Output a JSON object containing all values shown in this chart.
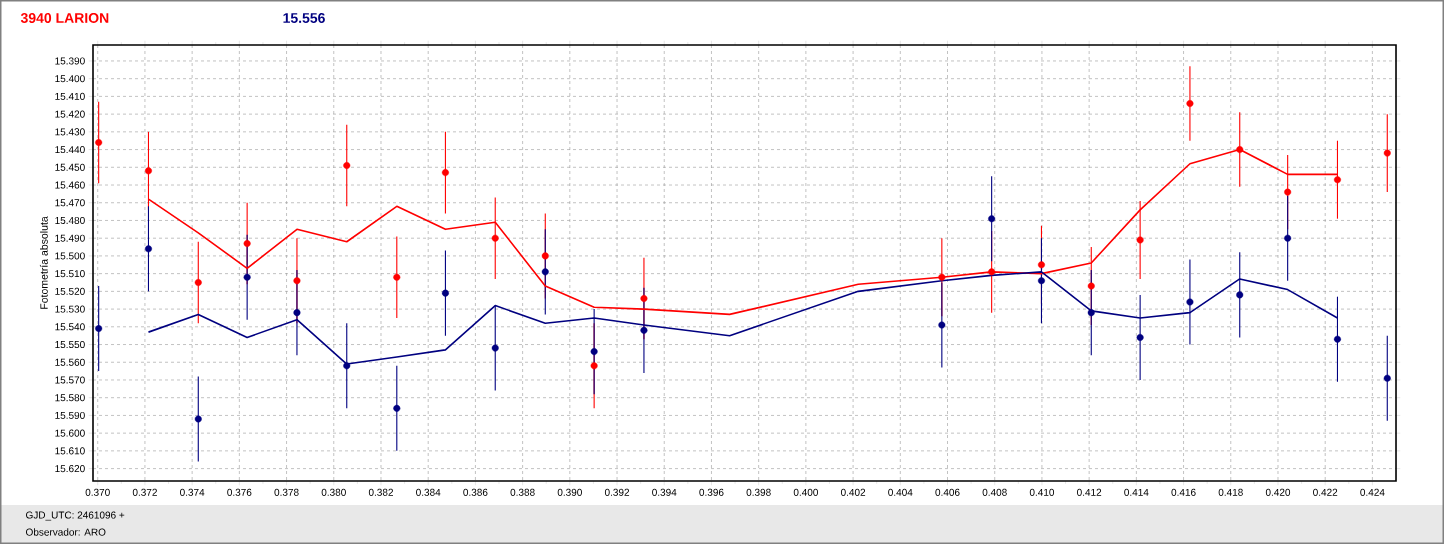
{
  "chart_data": {
    "type": "scatter",
    "title": "3940 LARION",
    "subtitle": "15.556",
    "ylabel": "Fotometría absoluta",
    "annotations": [
      "GJD_UTC: 2461096 +",
      "Observador: ARO"
    ],
    "xlim": [
      0.3698,
      0.425
    ],
    "ylim": [
      15.627,
      15.381
    ],
    "xticks": [
      {
        "value": 0.37,
        "label": "0.370"
      },
      {
        "value": 0.372,
        "label": "0.372"
      },
      {
        "value": 0.374,
        "label": "0.374"
      },
      {
        "value": 0.376,
        "label": "0.376"
      },
      {
        "value": 0.378,
        "label": "0.378"
      },
      {
        "value": 0.38,
        "label": "0.380"
      },
      {
        "value": 0.382,
        "label": "0.382"
      },
      {
        "value": 0.384,
        "label": "0.384"
      },
      {
        "value": 0.386,
        "label": "0.386"
      },
      {
        "value": 0.388,
        "label": "0.388"
      },
      {
        "value": 0.39,
        "label": "0.390"
      },
      {
        "value": 0.392,
        "label": "0.392"
      },
      {
        "value": 0.394,
        "label": "0.394"
      },
      {
        "value": 0.396,
        "label": "0.396"
      },
      {
        "value": 0.398,
        "label": "0.398"
      },
      {
        "value": 0.4,
        "label": "0.400"
      },
      {
        "value": 0.402,
        "label": "0.402"
      },
      {
        "value": 0.404,
        "label": "0.404"
      },
      {
        "value": 0.406,
        "label": "0.406"
      },
      {
        "value": 0.408,
        "label": "0.408"
      },
      {
        "value": 0.41,
        "label": "0.410"
      },
      {
        "value": 0.412,
        "label": "0.412"
      },
      {
        "value": 0.414,
        "label": "0.414"
      },
      {
        "value": 0.416,
        "label": "0.416"
      },
      {
        "value": 0.418,
        "label": "0.418"
      },
      {
        "value": 0.42,
        "label": "0.420"
      },
      {
        "value": 0.422,
        "label": "0.422"
      },
      {
        "value": 0.424,
        "label": "0.424"
      }
    ],
    "yticks": [
      {
        "value": 15.39,
        "label": "15.390"
      },
      {
        "value": 15.4,
        "label": "15.400"
      },
      {
        "value": 15.41,
        "label": "15.410"
      },
      {
        "value": 15.42,
        "label": "15.420"
      },
      {
        "value": 15.43,
        "label": "15.430"
      },
      {
        "value": 15.44,
        "label": "15.440"
      },
      {
        "value": 15.45,
        "label": "15.450"
      },
      {
        "value": 15.46,
        "label": "15.460"
      },
      {
        "value": 15.47,
        "label": "15.470"
      },
      {
        "value": 15.48,
        "label": "15.480"
      },
      {
        "value": 15.49,
        "label": "15.490"
      },
      {
        "value": 15.5,
        "label": "15.500"
      },
      {
        "value": 15.51,
        "label": "15.510"
      },
      {
        "value": 15.52,
        "label": "15.520"
      },
      {
        "value": 15.53,
        "label": "15.530"
      },
      {
        "value": 15.54,
        "label": "15.540"
      },
      {
        "value": 15.55,
        "label": "15.550"
      },
      {
        "value": 15.56,
        "label": "15.560"
      },
      {
        "value": 15.57,
        "label": "15.570"
      },
      {
        "value": 15.58,
        "label": "15.580"
      },
      {
        "value": 15.59,
        "label": "15.590"
      },
      {
        "value": 15.6,
        "label": "15.600"
      },
      {
        "value": 15.61,
        "label": "15.610"
      },
      {
        "value": 15.62,
        "label": "15.620"
      }
    ],
    "grid": true,
    "series": [
      {
        "marker": "circle",
        "color": "#ff0000",
        "x": [
          0.37004,
          0.37215,
          0.37426,
          0.37633,
          0.37844,
          0.38055,
          0.38267,
          0.38473,
          0.38684,
          0.38896,
          0.39103,
          0.39314,
          0.40576,
          0.40787,
          0.40998,
          0.41209,
          0.41416,
          0.41627,
          0.41838,
          0.42041,
          0.42252,
          0.42463
        ],
        "values": [
          15.436,
          15.452,
          15.515,
          15.493,
          15.514,
          15.449,
          15.512,
          15.453,
          15.49,
          15.5,
          15.562,
          15.524,
          15.512,
          15.509,
          15.505,
          15.517,
          15.491,
          15.414,
          15.44,
          15.464,
          15.457,
          15.442
        ],
        "errors": [
          0.023,
          0.022,
          0.023,
          0.023,
          0.024,
          0.023,
          0.023,
          0.023,
          0.023,
          0.024,
          0.024,
          0.023,
          0.022,
          0.023,
          0.022,
          0.022,
          0.022,
          0.021,
          0.021,
          0.021,
          0.022,
          0.022
        ]
      },
      {
        "marker": "circle",
        "color": "#000080",
        "x": [
          0.37004,
          0.37215,
          0.37426,
          0.37633,
          0.37844,
          0.38055,
          0.38267,
          0.38473,
          0.38684,
          0.38896,
          0.39103,
          0.39314,
          0.40576,
          0.40787,
          0.40998,
          0.41209,
          0.41416,
          0.41627,
          0.41838,
          0.42041,
          0.42252,
          0.42463
        ],
        "values": [
          15.541,
          15.496,
          15.592,
          15.512,
          15.532,
          15.562,
          15.586,
          15.521,
          15.552,
          15.509,
          15.554,
          15.542,
          15.539,
          15.479,
          15.514,
          15.532,
          15.546,
          15.526,
          15.522,
          15.49,
          15.547,
          15.569
        ],
        "errors": [
          0.024,
          0.024,
          0.024,
          0.024,
          0.024,
          0.024,
          0.024,
          0.024,
          0.024,
          0.024,
          0.024,
          0.024,
          0.024,
          0.024,
          0.024,
          0.024,
          0.024,
          0.024,
          0.024,
          0.024,
          0.024,
          0.024
        ]
      },
      {
        "type": "line",
        "marker": "none",
        "color": "#ff0000",
        "x": [
          0.37215,
          0.37426,
          0.37633,
          0.37844,
          0.38055,
          0.38267,
          0.38473,
          0.38684,
          0.38896,
          0.39103,
          0.39314,
          0.39677,
          0.40222,
          0.40576,
          0.40787,
          0.40998,
          0.41209,
          0.41416,
          0.41627,
          0.41838,
          0.42041,
          0.42252
        ],
        "values": [
          15.468,
          15.487,
          15.507,
          15.485,
          15.492,
          15.472,
          15.485,
          15.481,
          15.517,
          15.529,
          15.53,
          15.533,
          15.516,
          15.512,
          15.509,
          15.51,
          15.504,
          15.474,
          15.448,
          15.44,
          15.454,
          15.454
        ]
      },
      {
        "type": "line",
        "marker": "none",
        "color": "#000080",
        "x": [
          0.37215,
          0.37426,
          0.37633,
          0.37844,
          0.38055,
          0.38267,
          0.38473,
          0.38684,
          0.38896,
          0.39103,
          0.39314,
          0.39677,
          0.40222,
          0.40576,
          0.40787,
          0.40998,
          0.41209,
          0.41416,
          0.41627,
          0.41838,
          0.42041,
          0.42252
        ],
        "values": [
          15.543,
          15.533,
          15.546,
          15.536,
          15.561,
          15.557,
          15.553,
          15.528,
          15.538,
          15.535,
          15.539,
          15.545,
          15.52,
          15.514,
          15.511,
          15.509,
          15.531,
          15.535,
          15.532,
          15.513,
          15.519,
          15.535
        ]
      }
    ]
  }
}
